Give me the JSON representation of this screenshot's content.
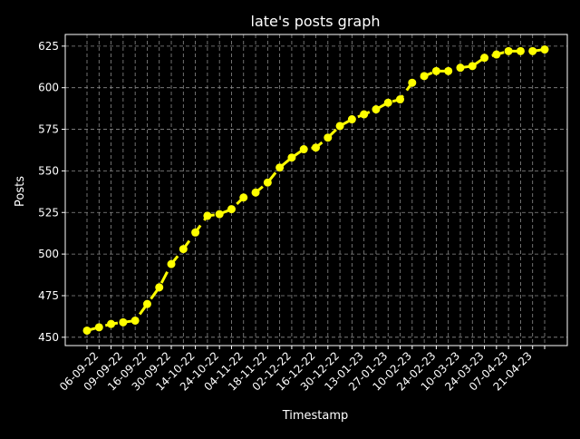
{
  "chart_data": {
    "type": "line",
    "title": "late's posts graph",
    "xlabel": "Timestamp",
    "ylabel": "Posts",
    "x_tick_labels": [
      "06-09-22",
      "09-09-22",
      "16-09-22",
      "30-09-22",
      "14-10-22",
      "24-10-22",
      "04-11-22",
      "18-11-22",
      "02-12-22",
      "16-12-22",
      "30-12-22",
      "13-01-23",
      "27-01-23",
      "10-02-23",
      "24-02-23",
      "10-03-23",
      "24-03-23",
      "07-04-23",
      "21-04-23"
    ],
    "y_ticks": [
      450,
      475,
      500,
      525,
      550,
      575,
      600,
      625
    ],
    "ylim": [
      445,
      632
    ],
    "grid": true,
    "line_style": "dashed",
    "colors": {
      "background": "#000000",
      "series": "#ffff00",
      "grid": "#8c8c8c",
      "axes": "#ffffff"
    },
    "series": [
      {
        "values": [
          454,
          456,
          458,
          459,
          460,
          470,
          480,
          494,
          503,
          513,
          523,
          524,
          527,
          534,
          537,
          543,
          552,
          558,
          563,
          564,
          570,
          577,
          581,
          584,
          587,
          591,
          593,
          603,
          607,
          610,
          610,
          612,
          613,
          618,
          620,
          622,
          622,
          622,
          623
        ]
      }
    ]
  }
}
